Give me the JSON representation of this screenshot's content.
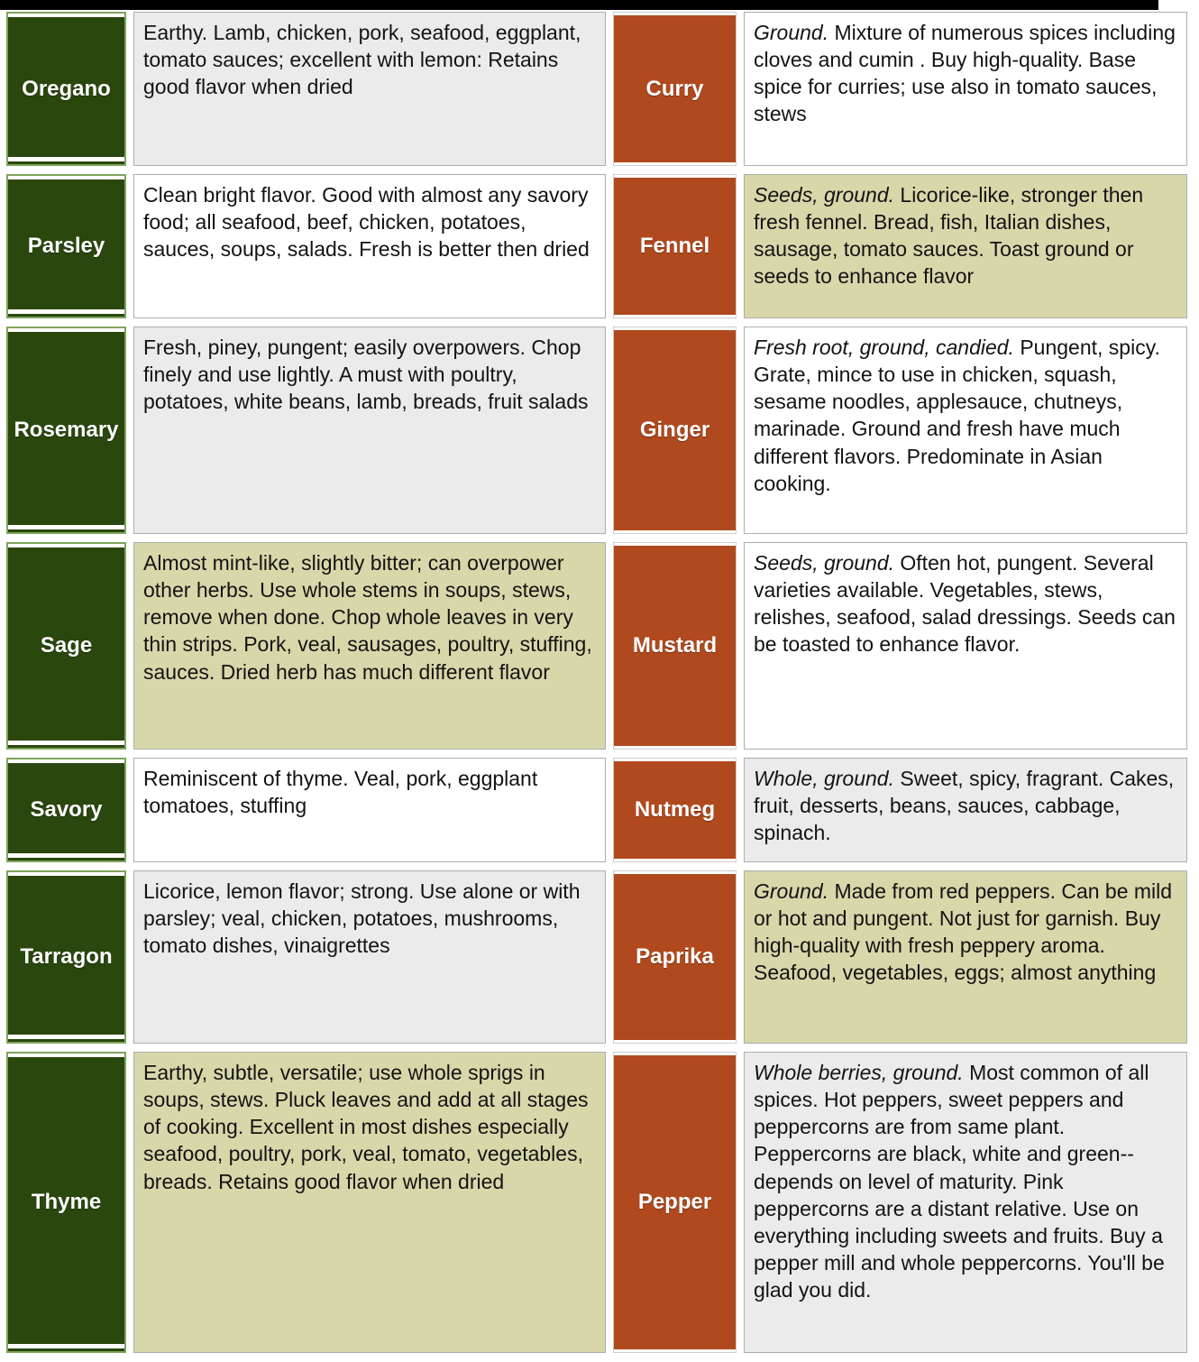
{
  "colors": {
    "herb_green": "#2a470e",
    "herb_green_border": "#7fa45c",
    "spice_orange": "#b04a1e",
    "khaki_bg": "#d8d7aa",
    "light_gray_bg": "#ebebeb",
    "text": "#131313"
  },
  "table": {
    "rows": [
      {
        "herb": {
          "name": "Oregano",
          "lead": "",
          "desc": "Earthy. Lamb, chicken, pork, seafood, eggplant, tomato sauces; excellent with lemon: Retains good flavor when dried",
          "bg": "gray"
        },
        "spice": {
          "name": "Curry",
          "lead": "Ground.",
          "desc": " Mixture of numerous spices including cloves and cumin . Buy high-quality.  Base spice for curries; use also in tomato sauces, stews",
          "bg": "white"
        }
      },
      {
        "herb": {
          "name": "Parsley",
          "lead": "",
          "desc": "Clean bright flavor. Good with almost any savory food; all seafood, beef, chicken, potatoes, sauces, soups, salads. Fresh is better then dried",
          "bg": "white"
        },
        "spice": {
          "name": "Fennel",
          "lead": "Seeds, ground.",
          "desc": "  Licorice-like, stronger then fresh fennel.  Bread, fish, Italian dishes, sausage, tomato sauces. Toast ground or seeds to enhance flavor",
          "bg": "khaki"
        }
      },
      {
        "herb": {
          "name": "Rosemary",
          "lead": "",
          "desc": "Fresh, piney, pungent; easily overpowers. Chop finely and use lightly. A must with poultry, potatoes, white beans, lamb, breads, fruit salads",
          "bg": "gray"
        },
        "spice": {
          "name": "Ginger",
          "lead": "Fresh root, ground, candied.",
          "desc": " Pungent, spicy.  Grate, mince to use in chicken, squash, sesame noodles, applesauce, chutneys, marinade. Ground and fresh have much different flavors. Predominate in Asian cooking.",
          "bg": "white"
        }
      },
      {
        "herb": {
          "name": "Sage",
          "lead": "",
          "desc": "Almost mint-like, slightly bitter; can overpower other herbs. Use whole stems in soups, stews, remove when done. Chop whole leaves in very thin strips.  Pork, veal, sausages, poultry, stuffing, sauces. Dried herb has much different flavor",
          "bg": "khaki"
        },
        "spice": {
          "name": "Mustard",
          "lead": "Seeds, ground.",
          "desc": " Often hot, pungent. Several varieties available.  Vegetables, stews, relishes, seafood, salad dressings.  Seeds can be toasted to enhance flavor.",
          "bg": "white"
        }
      },
      {
        "herb": {
          "name": "Savory",
          "lead": "",
          "desc": "Reminiscent of thyme. Veal, pork, eggplant tomatoes, stuffing",
          "bg": "white"
        },
        "spice": {
          "name": "Nutmeg",
          "lead": "Whole, ground.",
          "desc": " Sweet, spicy, fragrant. Cakes, fruit, desserts, beans, sauces, cabbage, spinach.",
          "bg": "gray"
        }
      },
      {
        "herb": {
          "name": "Tarragon",
          "lead": "",
          "desc": "Licorice, lemon flavor; strong. Use alone or with parsley; veal, chicken, potatoes, mushrooms, tomato dishes, vinaigrettes",
          "bg": "gray"
        },
        "spice": {
          "name": "Paprika",
          "lead": "Ground.",
          "desc": " Made from red peppers. Can be mild or hot and pungent.  Not just for garnish.  Buy high-quality with fresh peppery aroma.  Seafood, vegetables, eggs; almost anything",
          "bg": "khaki"
        }
      },
      {
        "herb": {
          "name": "Thyme",
          "lead": "",
          "desc": "Earthy, subtle, versatile; use whole sprigs in soups, stews. Pluck leaves and add at all stages of cooking. Excellent in most dishes especially seafood, poultry, pork, veal, tomato, vegetables, breads. Retains good flavor when dried",
          "bg": "khaki"
        },
        "spice": {
          "name": "Pepper",
          "lead": "Whole berries, ground.",
          "desc": "  Most common of all spices. Hot peppers, sweet peppers and peppercorns are from same plant. Peppercorns are black, white and green--depends on level of maturity.  Pink peppercorns are a distant relative.  Use on everything including sweets and fruits.  Buy a pepper mill and whole peppercorns. You'll be glad you did.",
          "bg": "gray"
        }
      }
    ]
  }
}
